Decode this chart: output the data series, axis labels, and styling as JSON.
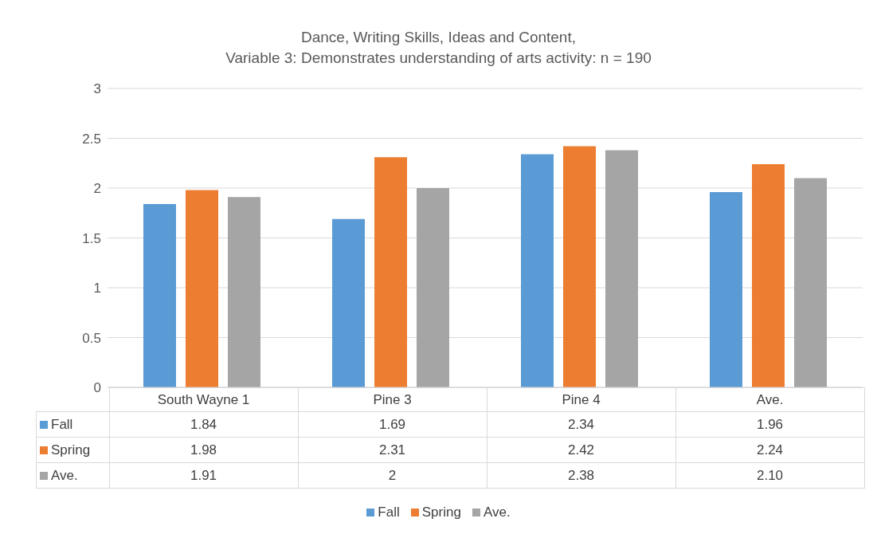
{
  "chart_data": {
    "type": "bar",
    "title": "Dance, Writing Skills, Ideas and Content,\nVariable 3: Demonstrates understanding of arts activity: n = 190",
    "categories": [
      "South Wayne 1",
      "Pine 3",
      "Pine 4",
      "Ave."
    ],
    "series": [
      {
        "name": "Fall",
        "color": "#5b9bd5",
        "values": [
          1.84,
          1.69,
          2.34,
          1.96
        ],
        "value_labels": [
          "1.84",
          "1.69",
          "2.34",
          "1.96"
        ]
      },
      {
        "name": "Spring",
        "color": "#ed7d31",
        "values": [
          1.98,
          2.31,
          2.42,
          2.24
        ],
        "value_labels": [
          "1.98",
          "2.31",
          "2.42",
          "2.24"
        ]
      },
      {
        "name": "Ave.",
        "color": "#a5a5a5",
        "values": [
          1.91,
          2,
          2.38,
          2.1
        ],
        "value_labels": [
          "1.91",
          "2",
          "2.38",
          "2.10"
        ]
      }
    ],
    "ylim": [
      0,
      3
    ],
    "yticks": [
      0,
      0.5,
      1,
      1.5,
      2,
      2.5,
      3
    ],
    "grid": "y",
    "legend": "bottom"
  }
}
